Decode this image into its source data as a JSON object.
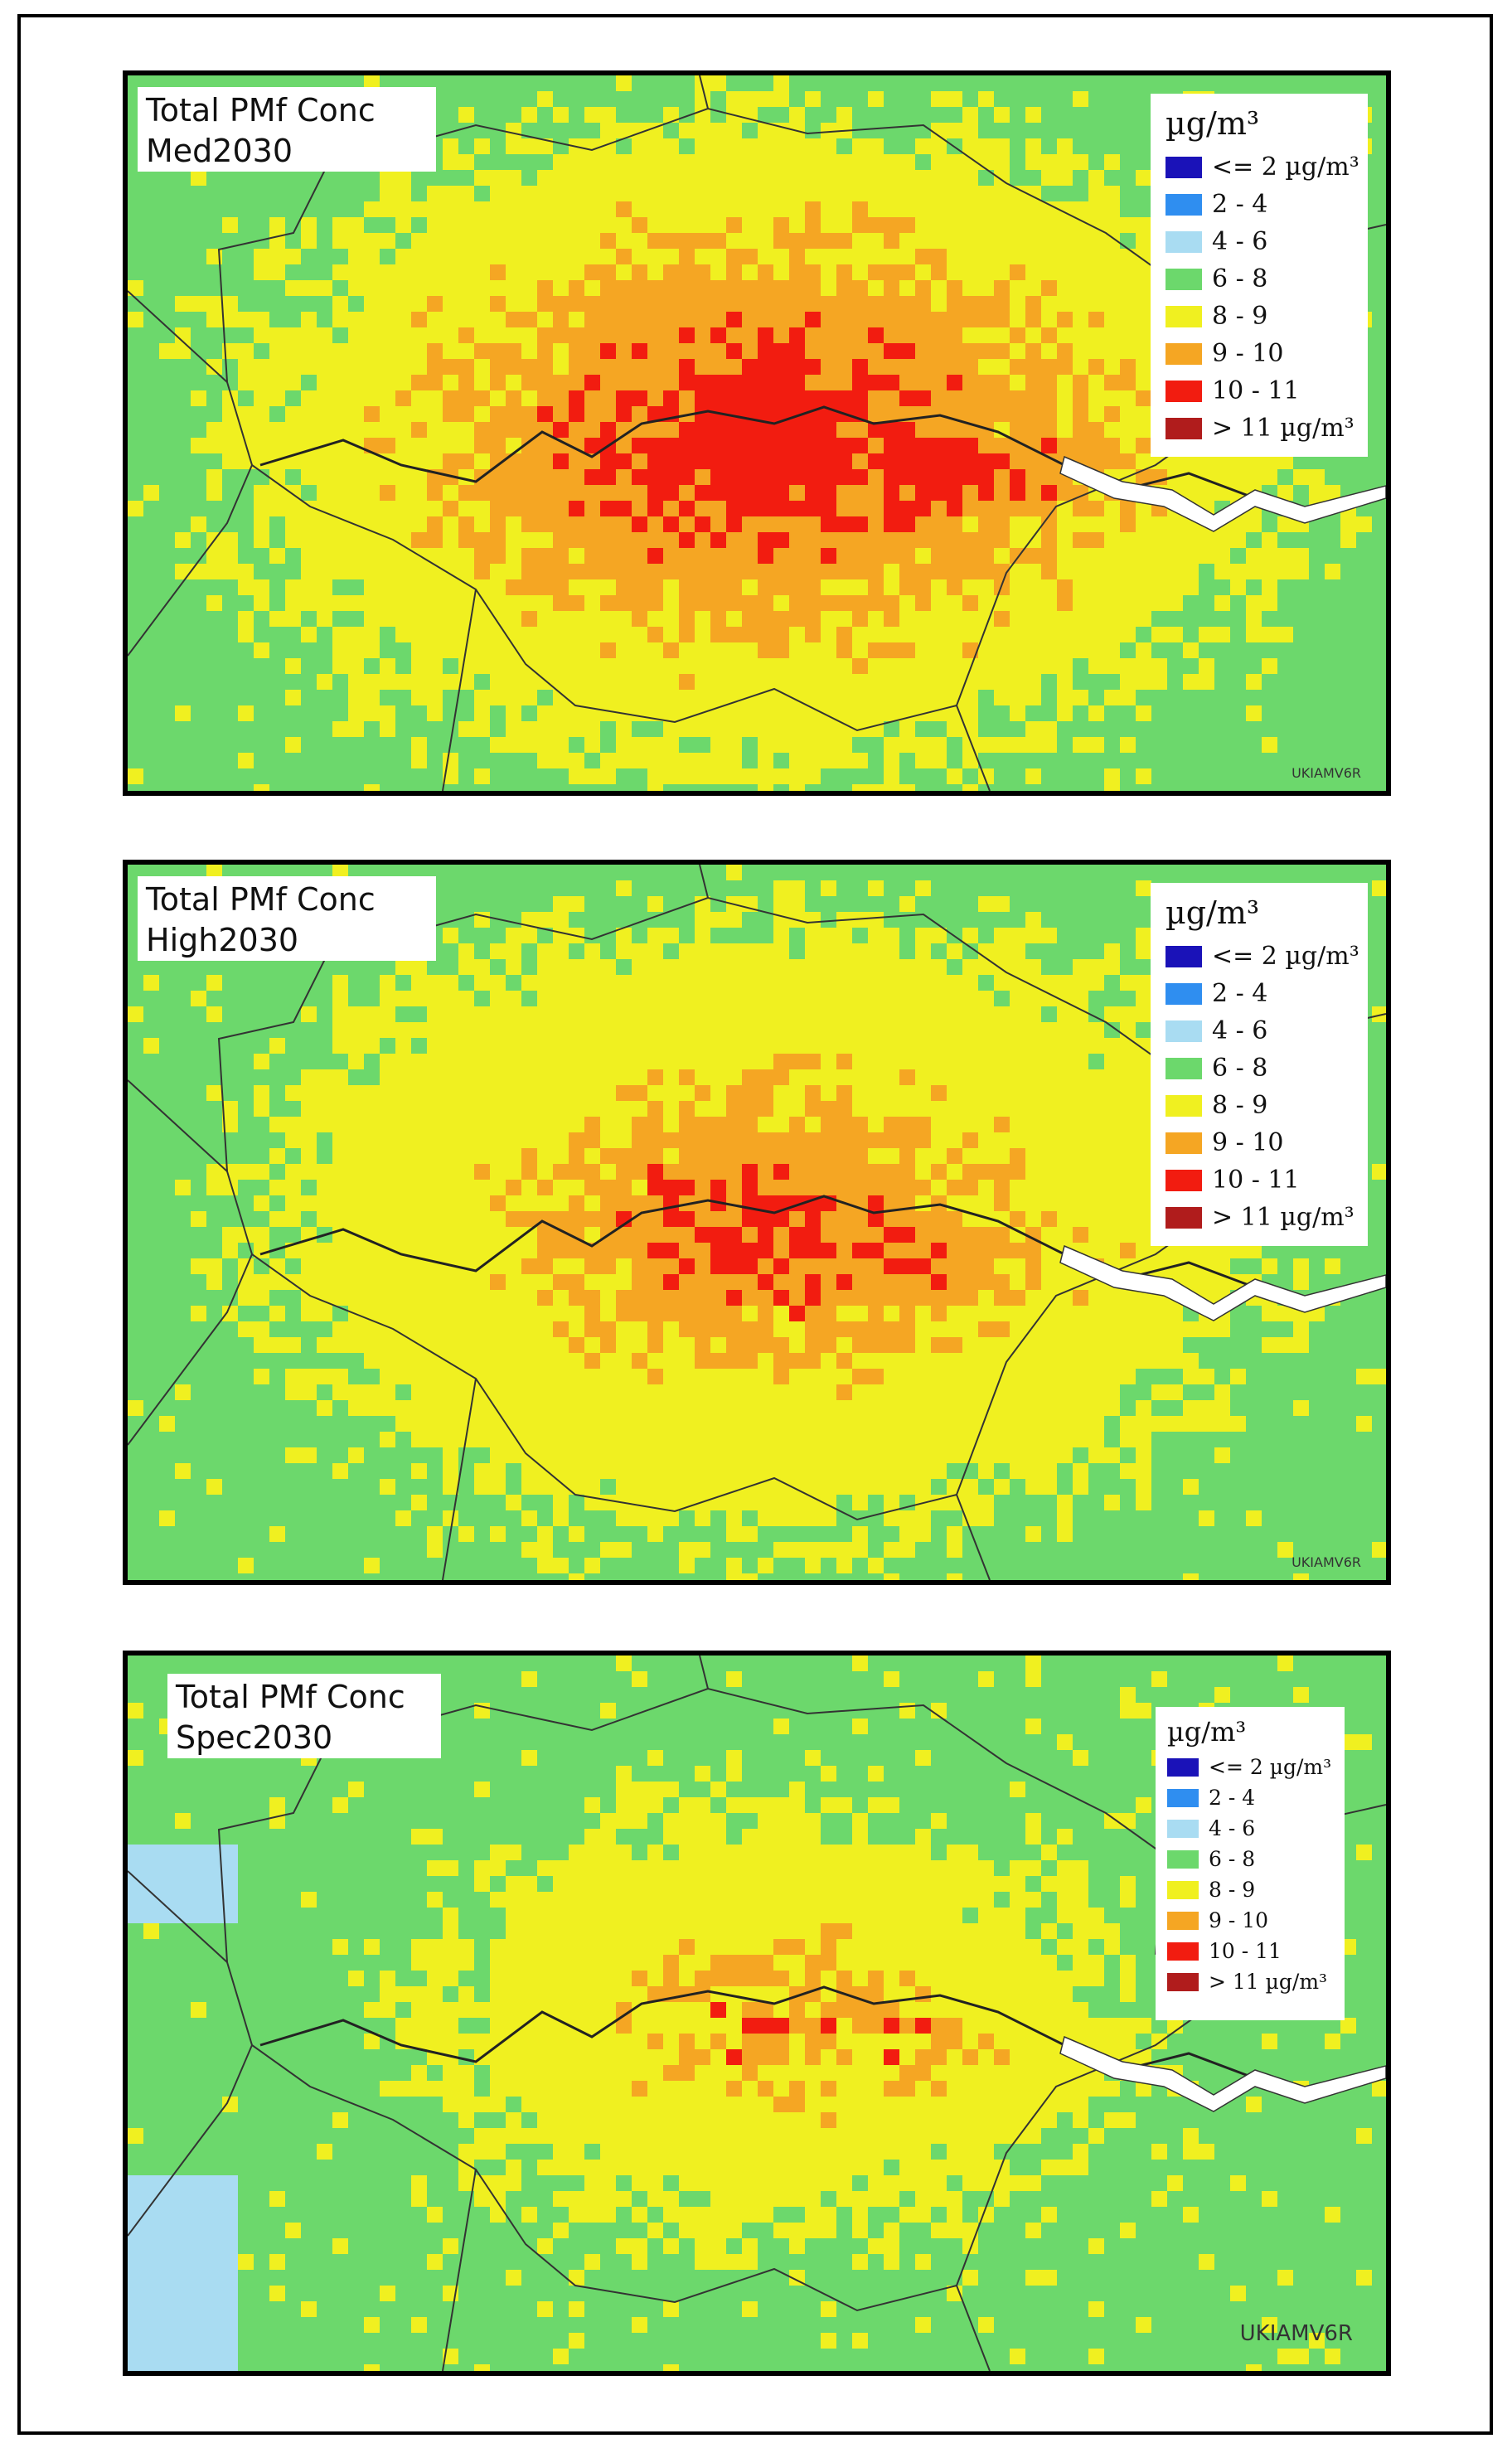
{
  "legend": {
    "unit": "µg/m³",
    "classes": [
      {
        "label": "<= 2 µg/m³",
        "color": "#1a12b8"
      },
      {
        "label": "2 - 4",
        "color": "#2f8ef0"
      },
      {
        "label": "4 - 6",
        "color": "#a9dcf2"
      },
      {
        "label": "6 - 8",
        "color": "#6cd86c"
      },
      {
        "label": "8 - 9",
        "color": "#f0f020"
      },
      {
        "label": "9 - 10",
        "color": "#f5a623"
      },
      {
        "label": "10 - 11",
        "color": "#f21c10"
      },
      {
        "label": "> 11 µg/m³",
        "color": "#b01c1c"
      }
    ]
  },
  "maps": [
    {
      "title_line1": "Total PMf Conc",
      "title_line2": "Med2030",
      "credit": "UKIAMV6R"
    },
    {
      "title_line1": "Total PMf Conc",
      "title_line2": "High2030",
      "credit": "UKIAMV6R"
    },
    {
      "title_line1": "Total PMf Conc",
      "title_line2": "Spec2030",
      "credit": "UKIAMV6R"
    }
  ]
}
